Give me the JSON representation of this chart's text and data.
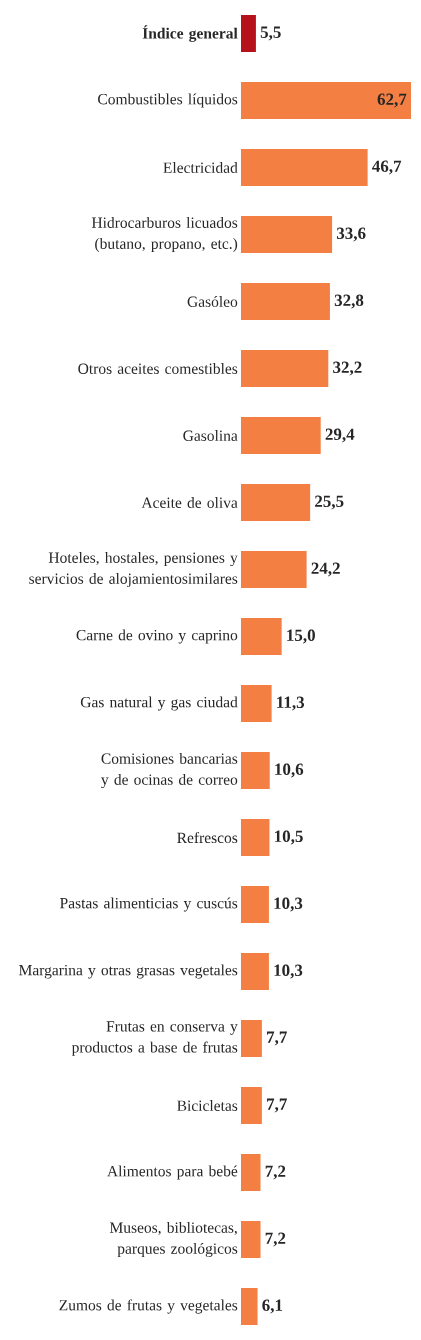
{
  "chart_data": {
    "type": "bar",
    "orientation": "horizontal",
    "categories": [
      "Índice general",
      "Combustibles líquidos",
      "Electricidad",
      "Hidrocarburos licuados (butano, propano, etc.)",
      "Gasóleo",
      "Otros aceites comestibles",
      "Gasolina",
      "Aceite de oliva",
      "Hoteles, hostales, pensiones y servicios de alojamientosimilares",
      "Carne de ovino y caprino",
      "Gas natural y gas ciudad",
      "Comisiones bancarias y de ocinas de correo",
      "Refrescos",
      "Pastas alimenticias y cuscús",
      "Margarina y otras grasas vegetales",
      "Frutas en conserva y productos a base de frutas",
      "Bicicletas",
      "Alimentos para bebé",
      "Museos, bibliotecas, parques zoológicos",
      "Zumos de frutas y vegetales"
    ],
    "values": [
      5.5,
      62.7,
      46.7,
      33.6,
      32.8,
      32.2,
      29.4,
      25.5,
      24.2,
      15.0,
      11.3,
      10.6,
      10.5,
      10.3,
      10.3,
      7.7,
      7.7,
      7.2,
      7.2,
      6.1
    ],
    "value_labels": [
      "5,5",
      "62,7",
      "46,7",
      "33,6",
      "32,8",
      "32,2",
      "29,4",
      "25,5",
      "24,2",
      "15,0",
      "11,3",
      "10,6",
      "10,5",
      "10,3",
      "10,3",
      "7,7",
      "7,7",
      "7,2",
      "7,2",
      "6,1"
    ],
    "colors": [
      "#b5121b",
      "#f47f43",
      "#f47f43",
      "#f47f43",
      "#f47f43",
      "#f47f43",
      "#f47f43",
      "#f47f43",
      "#f47f43",
      "#f47f43",
      "#f47f43",
      "#f47f43",
      "#f47f43",
      "#f47f43",
      "#f47f43",
      "#f47f43",
      "#f47f43",
      "#f47f43",
      "#f47f43",
      "#f47f43"
    ]
  }
}
